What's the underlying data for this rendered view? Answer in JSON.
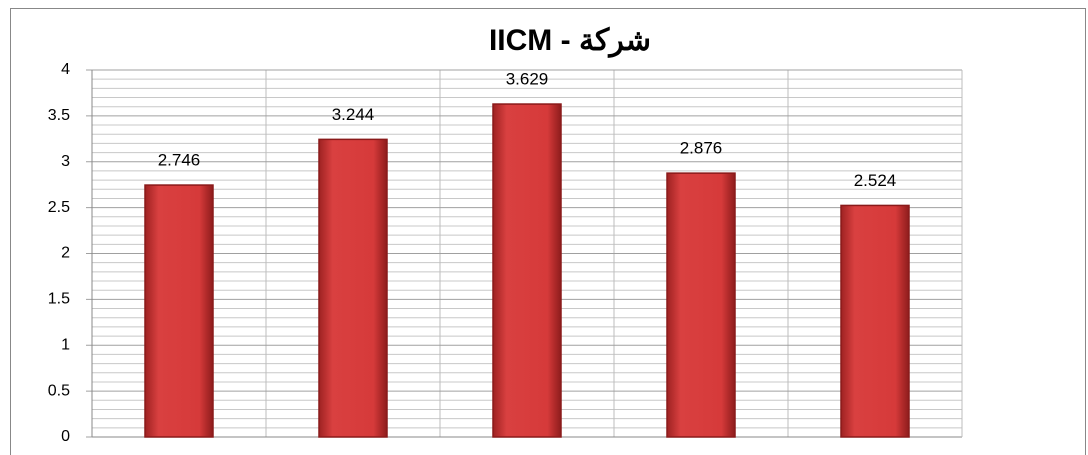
{
  "chart_data": {
    "type": "bar",
    "title": "شركة - IICM",
    "categories": [
      null,
      null,
      null,
      null,
      null
    ],
    "values": [
      2.746,
      3.244,
      3.629,
      2.876,
      2.524
    ],
    "color": "#d63a3a",
    "ylim": [
      0,
      4
    ],
    "yticks": [
      0,
      0.5,
      1,
      1.5,
      2,
      2.5,
      3,
      3.5,
      4
    ],
    "grid": true,
    "minor_grid": true
  }
}
